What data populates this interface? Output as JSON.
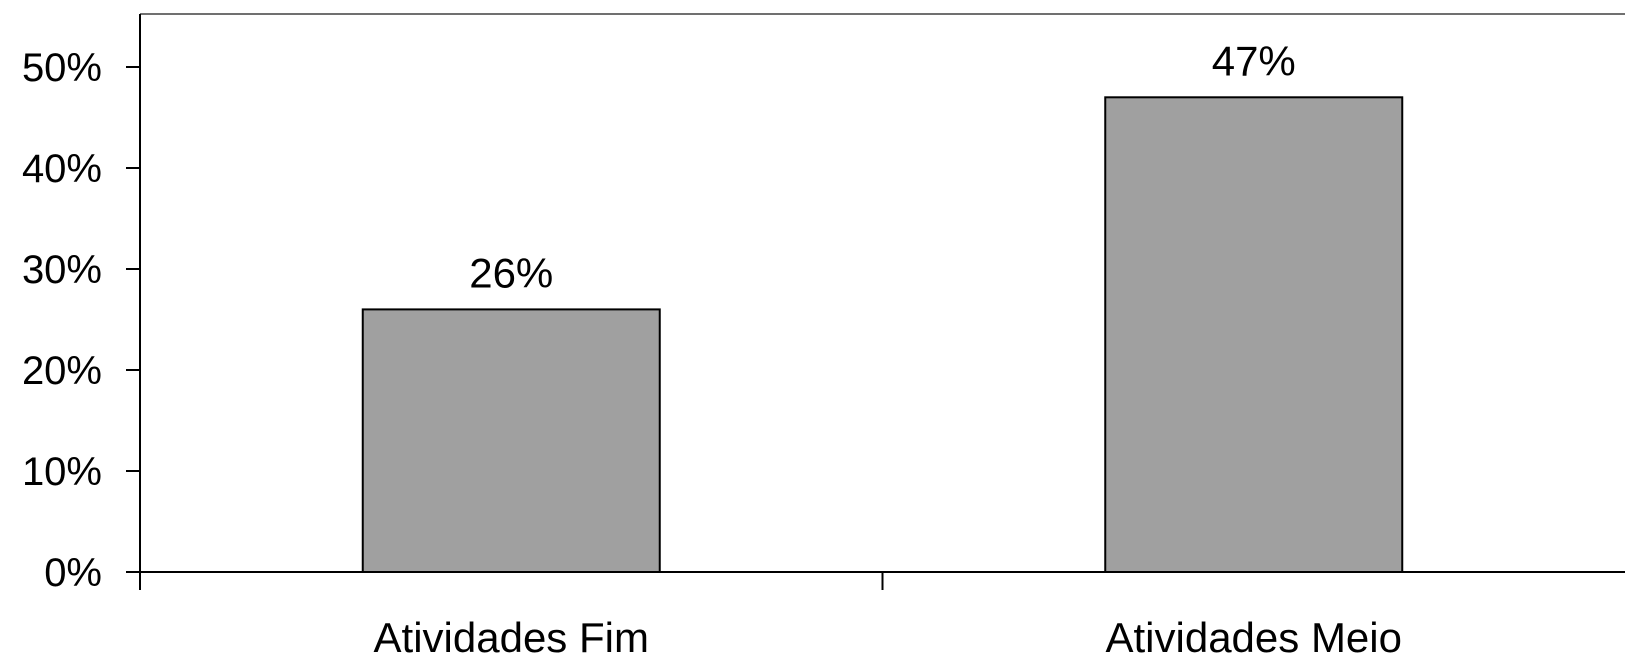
{
  "chart_data": {
    "type": "bar",
    "categories": [
      "Atividades Fim",
      "Atividades Meio"
    ],
    "values": [
      26,
      47
    ],
    "data_labels": [
      "26%",
      "47%"
    ],
    "yticks": [
      0,
      10,
      20,
      30,
      40,
      50
    ],
    "ytick_labels": [
      "0%",
      "10%",
      "20%",
      "30%",
      "40%",
      "50%"
    ],
    "ylim": [
      0,
      55
    ],
    "grid": false,
    "legend": "none",
    "bar_color": "#a0a0a0",
    "bar_stroke": "#000000",
    "axis_color": "#000000"
  }
}
